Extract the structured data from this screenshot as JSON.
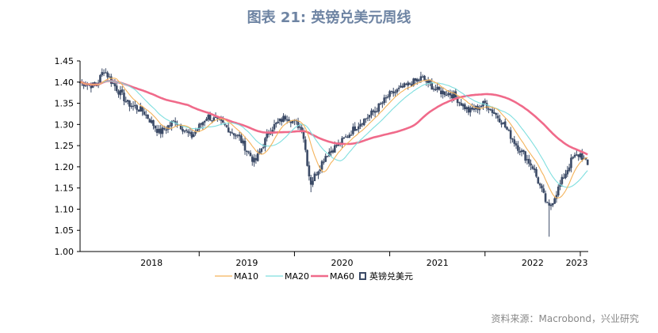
{
  "title": "图表 21: 英镑兑美元周线",
  "source": "资料来源：Macrobond，兴业研究",
  "colors": {
    "title": "#6e84a3",
    "candle": "#3b4a66",
    "ma10": "#f4b35b",
    "ma20": "#7fdfdf",
    "ma60": "#f06a8a"
  },
  "chart_data": {
    "type": "candlestick",
    "title": "图表 21: 英镑兑美元周线",
    "xlabel": "",
    "ylabel": "",
    "ylim": [
      1.0,
      1.45
    ],
    "yticks": [
      "1.45",
      "1.40",
      "1.35",
      "1.30",
      "1.25",
      "1.20",
      "1.15",
      "1.10",
      "1.05",
      "1.00"
    ],
    "xticks": [
      "2018",
      "2019",
      "2020",
      "2021",
      "2022",
      "2023"
    ],
    "xlim": [
      "2017-10",
      "2023-02"
    ],
    "grid": false,
    "legend": {
      "position": "bottom",
      "entries": [
        "MA10",
        "MA20",
        "MA60",
        "英镑兑美元"
      ]
    },
    "series": [
      {
        "name": "英镑兑美元",
        "kind": "candlestick",
        "close_anchors": [
          [
            "2017-10",
            1.4
          ],
          [
            "2017-12",
            1.39
          ],
          [
            "2018-01",
            1.43
          ],
          [
            "2018-02",
            1.4
          ],
          [
            "2018-04",
            1.35
          ],
          [
            "2018-06",
            1.33
          ],
          [
            "2018-08",
            1.28
          ],
          [
            "2018-10",
            1.31
          ],
          [
            "2018-12",
            1.27
          ],
          [
            "2019-02",
            1.32
          ],
          [
            "2019-04",
            1.3
          ],
          [
            "2019-06",
            1.27
          ],
          [
            "2019-08",
            1.21
          ],
          [
            "2019-10",
            1.29
          ],
          [
            "2019-12",
            1.32
          ],
          [
            "2020-02",
            1.29
          ],
          [
            "2020-03",
            1.16
          ],
          [
            "2020-05",
            1.23
          ],
          [
            "2020-07",
            1.26
          ],
          [
            "2020-09",
            1.3
          ],
          [
            "2020-11",
            1.33
          ],
          [
            "2021-01",
            1.37
          ],
          [
            "2021-03",
            1.39
          ],
          [
            "2021-05",
            1.41
          ],
          [
            "2021-07",
            1.38
          ],
          [
            "2021-09",
            1.37
          ],
          [
            "2021-11",
            1.33
          ],
          [
            "2022-01",
            1.35
          ],
          [
            "2022-03",
            1.31
          ],
          [
            "2022-05",
            1.25
          ],
          [
            "2022-07",
            1.2
          ],
          [
            "2022-09",
            1.1
          ],
          [
            "2022-11",
            1.18
          ],
          [
            "2022-12",
            1.22
          ],
          [
            "2023-01",
            1.23
          ],
          [
            "2023-02",
            1.2
          ]
        ]
      },
      {
        "name": "MA10",
        "kind": "line",
        "period": 10
      },
      {
        "name": "MA20",
        "kind": "line",
        "period": 20
      },
      {
        "name": "MA60",
        "kind": "line",
        "period": 60
      }
    ]
  }
}
